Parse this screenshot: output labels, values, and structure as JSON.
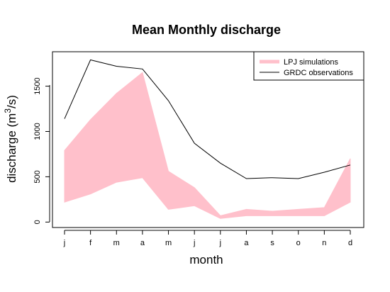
{
  "chart_data": {
    "type": "area",
    "title": "Mean Monthly discharge",
    "xlabel": "month",
    "ylabel_main": "discharge (m",
    "ylabel_sup": "3",
    "ylabel_tail": "/s)",
    "categories": [
      "j",
      "f",
      "m",
      "a",
      "m",
      "j",
      "j",
      "a",
      "s",
      "o",
      "n",
      "d"
    ],
    "ylim": [
      -60,
      1880
    ],
    "yticks": [
      0,
      500,
      1000,
      1500
    ],
    "grid": false,
    "legend_position": "top-right",
    "series": [
      {
        "name": "LPJ simulations",
        "kind": "band",
        "color": "#FFC0CB",
        "lower": [
          220,
          310,
          440,
          490,
          140,
          180,
          40,
          70,
          70,
          70,
          70,
          220
        ],
        "upper": [
          790,
          1130,
          1420,
          1650,
          560,
          380,
          70,
          140,
          120,
          140,
          160,
          700
        ]
      },
      {
        "name": "GRDC observations",
        "kind": "line",
        "color": "#000000",
        "values": [
          1140,
          1790,
          1720,
          1690,
          1340,
          870,
          650,
          480,
          490,
          480,
          550,
          630
        ]
      }
    ]
  }
}
